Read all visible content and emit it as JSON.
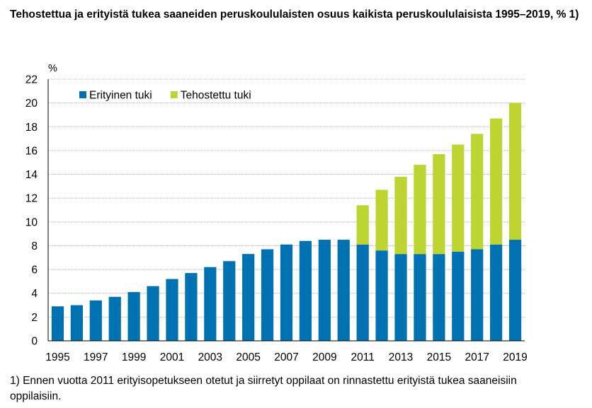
{
  "title": "Tehostettua ja erityistä tukea saaneiden peruskoululaisten osuus kaikista peruskoululaisista 1995–2019, % 1)",
  "footnote": "1) Ennen vuotta 2011 erityisopetukseen otetut ja siirretyt oppilaat on rinnastettu erityistä tukea saaneisiin oppilaisiin.",
  "chart_data": {
    "type": "bar",
    "stacked": true,
    "ylabel": "%",
    "ylim": [
      0,
      22
    ],
    "yticks": [
      0,
      2,
      4,
      6,
      8,
      10,
      12,
      14,
      16,
      18,
      20,
      22
    ],
    "grid": true,
    "legend_position": "top-left",
    "categories": [
      "1995",
      "1996",
      "1997",
      "1998",
      "1999",
      "2000",
      "2001",
      "2002",
      "2003",
      "2004",
      "2005",
      "2006",
      "2007",
      "2008",
      "2009",
      "2010",
      "2011",
      "2012",
      "2013",
      "2014",
      "2015",
      "2016",
      "2017",
      "2018",
      "2019"
    ],
    "xtick_labels": [
      "1995",
      "1997",
      "1999",
      "2001",
      "2003",
      "2005",
      "2007",
      "2009",
      "2011",
      "2013",
      "2015",
      "2017",
      "2019"
    ],
    "series": [
      {
        "name": "Erityinen tuki",
        "color": "#0072b2",
        "values": [
          2.9,
          3.0,
          3.4,
          3.7,
          4.1,
          4.6,
          5.2,
          5.7,
          6.2,
          6.7,
          7.3,
          7.7,
          8.1,
          8.4,
          8.5,
          8.5,
          8.1,
          7.6,
          7.3,
          7.3,
          7.3,
          7.5,
          7.7,
          8.1,
          8.5
        ]
      },
      {
        "name": "Tehostettu tuki",
        "color": "#bcd531",
        "values": [
          0,
          0,
          0,
          0,
          0,
          0,
          0,
          0,
          0,
          0,
          0,
          0,
          0,
          0,
          0,
          0,
          3.3,
          5.1,
          6.5,
          7.5,
          8.4,
          9.0,
          9.7,
          10.6,
          11.5
        ]
      }
    ]
  }
}
